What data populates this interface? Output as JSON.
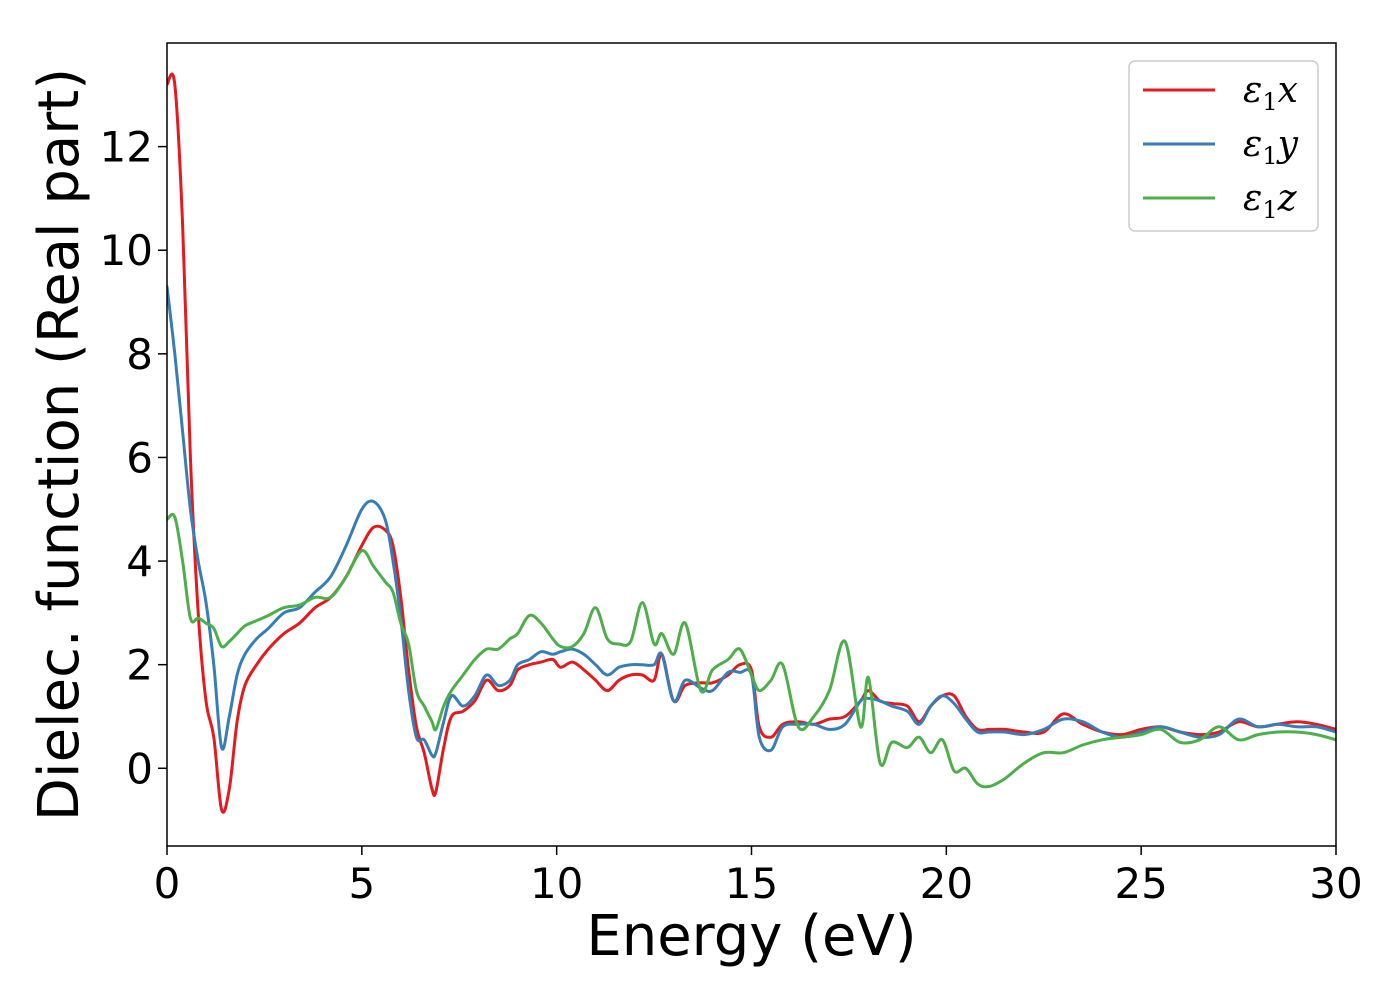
{
  "chart_data": {
    "type": "line",
    "xlabel": "Energy (eV)",
    "ylabel": "Dielec. function (Real part)",
    "xlim": [
      0,
      30
    ],
    "ylim": [
      -1.5,
      14.0
    ],
    "xticks": [
      0,
      5,
      10,
      15,
      20,
      25,
      30
    ],
    "yticks": [
      0,
      2,
      4,
      6,
      8,
      10,
      12
    ],
    "grid": false,
    "legend_position": "top-right",
    "series": [
      {
        "name": "ε1x",
        "legend_base": "ε",
        "legend_sub": "1",
        "legend_tail": "x",
        "color": "#e41a1c",
        "x": [
          0,
          0.2,
          0.4,
          0.6,
          0.8,
          1.0,
          1.2,
          1.4,
          1.6,
          1.8,
          2.0,
          2.3,
          2.6,
          3.0,
          3.4,
          3.8,
          4.2,
          4.6,
          5.0,
          5.3,
          5.6,
          5.8,
          6.0,
          6.2,
          6.4,
          6.6,
          6.8,
          6.9,
          7.1,
          7.3,
          7.6,
          7.9,
          8.2,
          8.5,
          8.8,
          9.0,
          9.3,
          9.6,
          9.9,
          10.1,
          10.4,
          10.7,
          11.0,
          11.3,
          11.6,
          11.9,
          12.2,
          12.5,
          12.7,
          13.0,
          13.3,
          13.7,
          14.0,
          14.4,
          14.7,
          15.0,
          15.2,
          15.5,
          15.8,
          16.2,
          16.6,
          17.0,
          17.4,
          17.8,
          18.0,
          18.3,
          18.6,
          19.0,
          19.3,
          19.6,
          19.9,
          20.2,
          20.5,
          20.8,
          21.1,
          21.5,
          22.0,
          22.5,
          23.0,
          23.5,
          24.0,
          24.5,
          25.0,
          25.5,
          26.0,
          26.5,
          27.0,
          27.5,
          28.0,
          28.5,
          29.0,
          29.5,
          30.0
        ],
        "y": [
          13.2,
          13.2,
          10.5,
          6.0,
          3.0,
          1.3,
          0.6,
          -0.8,
          -0.4,
          0.9,
          1.6,
          2.0,
          2.3,
          2.6,
          2.8,
          3.1,
          3.3,
          3.7,
          4.3,
          4.65,
          4.6,
          4.3,
          3.3,
          1.9,
          0.8,
          0.3,
          -0.4,
          -0.45,
          0.4,
          1.0,
          1.1,
          1.3,
          1.7,
          1.5,
          1.6,
          1.9,
          2.0,
          2.05,
          2.1,
          1.95,
          2.05,
          1.9,
          1.7,
          1.5,
          1.7,
          1.8,
          1.8,
          1.7,
          2.2,
          1.3,
          1.6,
          1.65,
          1.65,
          1.8,
          2.0,
          1.9,
          0.8,
          0.6,
          0.85,
          0.9,
          0.85,
          0.95,
          1.0,
          1.3,
          1.5,
          1.3,
          1.25,
          1.2,
          0.9,
          1.2,
          1.4,
          1.4,
          1.0,
          0.75,
          0.75,
          0.75,
          0.7,
          0.7,
          1.05,
          0.85,
          0.7,
          0.65,
          0.75,
          0.8,
          0.7,
          0.65,
          0.7,
          0.9,
          0.8,
          0.85,
          0.9,
          0.85,
          0.75
        ]
      },
      {
        "name": "ε1y",
        "legend_base": "ε",
        "legend_sub": "1",
        "legend_tail": "y",
        "color": "#377eb8",
        "x": [
          0,
          0.2,
          0.4,
          0.6,
          0.8,
          1.0,
          1.2,
          1.4,
          1.6,
          1.8,
          2.0,
          2.3,
          2.6,
          3.0,
          3.4,
          3.8,
          4.2,
          4.6,
          5.0,
          5.3,
          5.6,
          5.8,
          6.0,
          6.2,
          6.4,
          6.6,
          6.8,
          6.9,
          7.1,
          7.3,
          7.6,
          7.9,
          8.2,
          8.5,
          8.8,
          9.0,
          9.3,
          9.6,
          9.9,
          10.1,
          10.4,
          10.7,
          11.0,
          11.3,
          11.6,
          11.9,
          12.2,
          12.5,
          12.7,
          13.0,
          13.3,
          13.7,
          14.0,
          14.4,
          14.7,
          15.0,
          15.2,
          15.5,
          15.8,
          16.2,
          16.6,
          17.0,
          17.4,
          17.8,
          18.0,
          18.3,
          18.6,
          19.0,
          19.3,
          19.6,
          19.9,
          20.2,
          20.5,
          20.8,
          21.1,
          21.5,
          22.0,
          22.5,
          23.0,
          23.5,
          24.0,
          24.5,
          25.0,
          25.5,
          26.0,
          26.5,
          27.0,
          27.5,
          28.0,
          28.5,
          29.0,
          29.5,
          30.0
        ],
        "y": [
          9.3,
          8.0,
          6.5,
          5.0,
          4.0,
          3.2,
          2.0,
          0.4,
          1.0,
          1.8,
          2.2,
          2.5,
          2.7,
          3.0,
          3.1,
          3.4,
          3.7,
          4.3,
          5.0,
          5.15,
          4.8,
          4.0,
          2.9,
          1.5,
          0.6,
          0.55,
          0.25,
          0.3,
          0.9,
          1.4,
          1.2,
          1.4,
          1.8,
          1.6,
          1.7,
          2.0,
          2.1,
          2.25,
          2.2,
          2.25,
          2.3,
          2.2,
          2.0,
          1.8,
          1.95,
          2.0,
          2.0,
          2.0,
          2.2,
          1.3,
          1.7,
          1.55,
          1.5,
          1.85,
          1.85,
          1.8,
          0.6,
          0.35,
          0.8,
          0.85,
          0.85,
          0.75,
          0.85,
          1.3,
          1.35,
          1.3,
          1.2,
          1.1,
          0.85,
          1.2,
          1.4,
          1.25,
          0.95,
          0.7,
          0.7,
          0.7,
          0.65,
          0.75,
          0.95,
          0.9,
          0.7,
          0.6,
          0.7,
          0.8,
          0.7,
          0.6,
          0.65,
          0.95,
          0.8,
          0.85,
          0.8,
          0.8,
          0.7
        ]
      },
      {
        "name": "ε1z",
        "legend_base": "ε",
        "legend_sub": "1",
        "legend_tail": "z",
        "color": "#4daf4a",
        "x": [
          0,
          0.2,
          0.4,
          0.6,
          0.8,
          1.0,
          1.2,
          1.4,
          1.6,
          1.8,
          2.0,
          2.3,
          2.6,
          3.0,
          3.4,
          3.8,
          4.2,
          4.6,
          5.0,
          5.3,
          5.6,
          5.8,
          6.0,
          6.2,
          6.4,
          6.6,
          6.8,
          6.9,
          7.1,
          7.3,
          7.6,
          7.9,
          8.2,
          8.5,
          8.8,
          9.0,
          9.3,
          9.6,
          9.9,
          10.1,
          10.4,
          10.7,
          11.0,
          11.3,
          11.6,
          11.9,
          12.2,
          12.5,
          12.7,
          13.0,
          13.3,
          13.7,
          14.0,
          14.4,
          14.7,
          15.0,
          15.2,
          15.5,
          15.8,
          16.2,
          16.6,
          17.0,
          17.4,
          17.8,
          18.0,
          18.3,
          18.6,
          19.0,
          19.3,
          19.6,
          19.9,
          20.2,
          20.5,
          20.8,
          21.1,
          21.5,
          22.0,
          22.5,
          23.0,
          23.5,
          24.0,
          24.5,
          25.0,
          25.5,
          26.0,
          26.5,
          27.0,
          27.5,
          28.0,
          28.5,
          29.0,
          29.5,
          30.0
        ],
        "y": [
          4.8,
          4.85,
          4.0,
          2.9,
          2.9,
          2.8,
          2.7,
          2.35,
          2.45,
          2.6,
          2.75,
          2.85,
          2.95,
          3.1,
          3.15,
          3.3,
          3.3,
          3.7,
          4.2,
          3.9,
          3.6,
          3.4,
          2.8,
          2.4,
          1.5,
          1.2,
          0.9,
          0.75,
          1.2,
          1.5,
          1.8,
          2.1,
          2.3,
          2.3,
          2.5,
          2.6,
          2.95,
          2.8,
          2.5,
          2.35,
          2.35,
          2.6,
          3.1,
          2.5,
          2.4,
          2.45,
          3.2,
          2.4,
          2.6,
          2.2,
          2.8,
          1.5,
          1.9,
          2.1,
          2.3,
          1.8,
          1.5,
          1.7,
          2.0,
          0.8,
          1.0,
          1.5,
          2.45,
          0.8,
          1.75,
          0.1,
          0.5,
          0.4,
          0.6,
          0.3,
          0.55,
          -0.05,
          0.0,
          -0.3,
          -0.35,
          -0.2,
          0.1,
          0.3,
          0.3,
          0.45,
          0.55,
          0.6,
          0.65,
          0.75,
          0.5,
          0.55,
          0.8,
          0.55,
          0.65,
          0.7,
          0.7,
          0.65,
          0.55
        ]
      }
    ]
  }
}
